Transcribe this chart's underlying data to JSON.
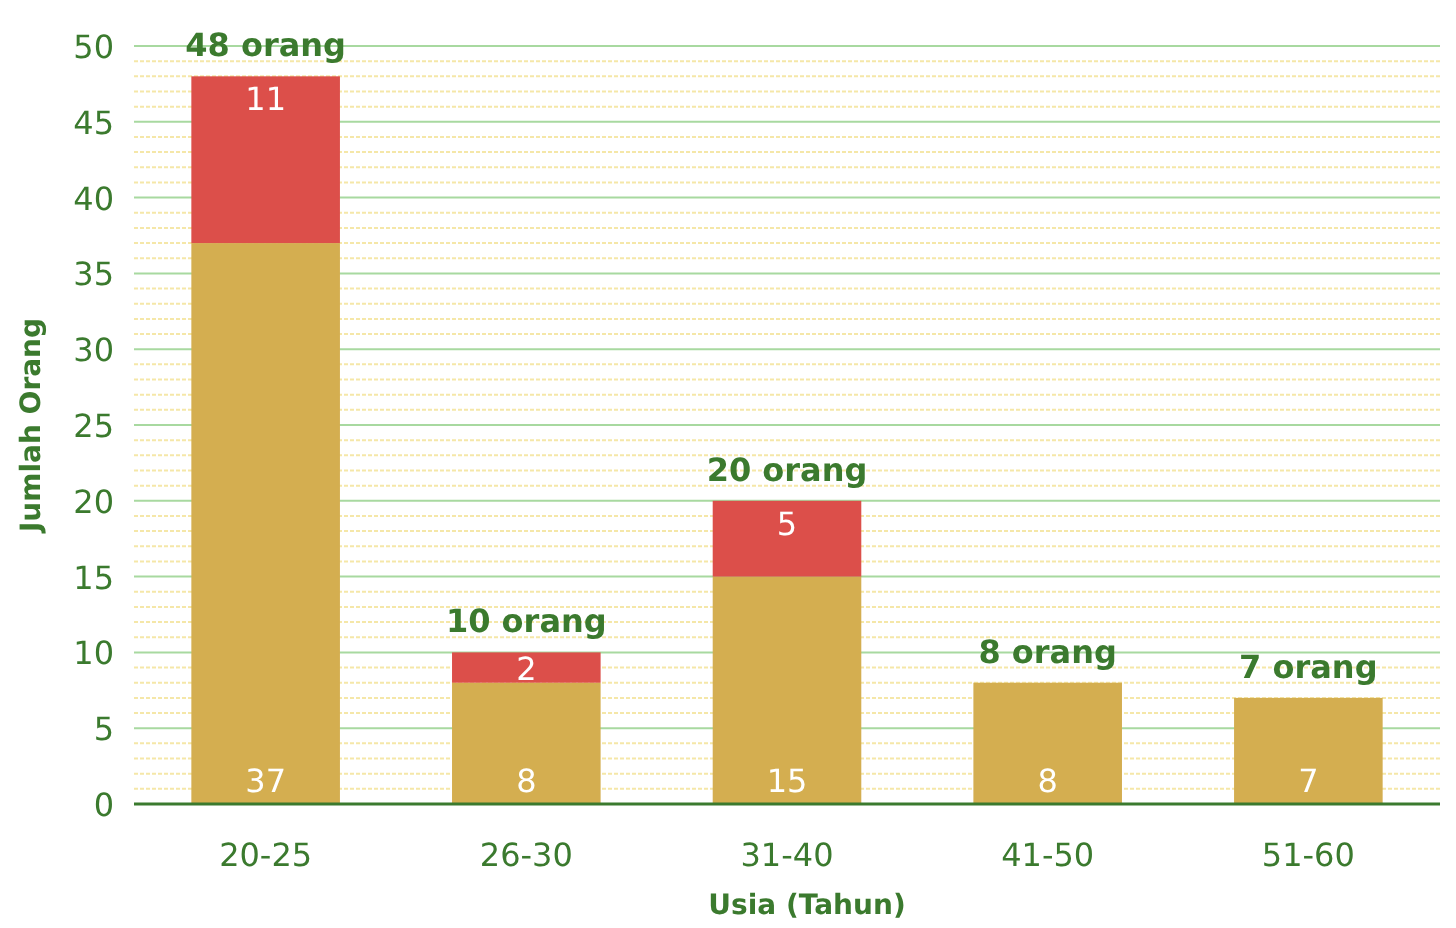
{
  "chart_data": {
    "type": "bar",
    "stacked": true,
    "xlabel": "Usia (Tahun)",
    "ylabel": "Jumlah Orang",
    "categories": [
      "20-25",
      "26-30",
      "31-40",
      "41-50",
      "51-60"
    ],
    "series": [
      {
        "color": "#d4ae50",
        "values": [
          37,
          8,
          15,
          8,
          7
        ]
      },
      {
        "color": "#dc4f4a",
        "values": [
          11,
          2,
          5,
          null,
          null
        ]
      }
    ],
    "totals": [
      "48 orang",
      "10 orang",
      "20 orang",
      "8 orang",
      "7 orang"
    ],
    "data_labels": true,
    "grid": "y",
    "ylim": [
      0,
      50
    ],
    "yticks": [
      0,
      {
        "value": 1,
        "label": null
      },
      {
        "value": 2,
        "label": null
      },
      {
        "value": 3,
        "label": null
      },
      {
        "value": 4,
        "label": null
      },
      5,
      {
        "value": 6,
        "label": null
      },
      {
        "value": 7,
        "label": null
      },
      {
        "value": 8,
        "label": null
      },
      {
        "value": 9,
        "label": null
      },
      10,
      {
        "value": 11,
        "label": null
      },
      {
        "value": 12,
        "label": null
      },
      {
        "value": 13,
        "label": null
      },
      {
        "value": 14,
        "label": null
      },
      15,
      {
        "value": 16,
        "label": null
      },
      {
        "value": 17,
        "label": null
      },
      {
        "value": 18,
        "label": null
      },
      {
        "value": 19,
        "label": null
      },
      20,
      {
        "value": 21,
        "label": null
      },
      {
        "value": 22,
        "label": null
      },
      {
        "value": 23,
        "label": null
      },
      {
        "value": 24,
        "label": null
      },
      25,
      {
        "value": 26,
        "label": null
      },
      {
        "value": 27,
        "label": null
      },
      {
        "value": 28,
        "label": null
      },
      {
        "value": 29,
        "label": null
      },
      30,
      {
        "value": 31,
        "label": null
      },
      {
        "value": 32,
        "label": null
      },
      {
        "value": 33,
        "label": null
      },
      {
        "value": 34,
        "label": null
      },
      35,
      {
        "value": 36,
        "label": null
      },
      {
        "value": 37,
        "label": null
      },
      {
        "value": 38,
        "label": null
      },
      {
        "value": 39,
        "label": null
      },
      40,
      {
        "value": 41,
        "label": null
      },
      {
        "value": 42,
        "label": null
      },
      {
        "value": 43,
        "label": null
      },
      {
        "value": 44,
        "label": null
      },
      45,
      {
        "value": 46,
        "label": null
      },
      {
        "value": 47,
        "label": null
      },
      {
        "value": 48,
        "label": null
      },
      {
        "value": 49,
        "label": null
      },
      50
    ]
  }
}
